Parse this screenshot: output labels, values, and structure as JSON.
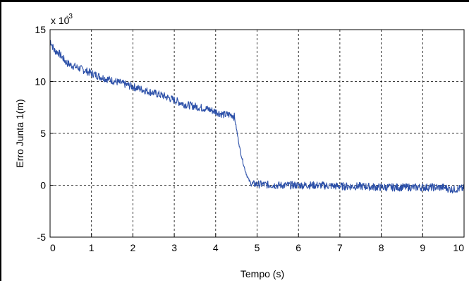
{
  "chart_data": {
    "type": "line",
    "title": "",
    "xlabel": "Tempo (s)",
    "ylabel": "Erro Junta 1(m)",
    "y_scale_label": "x 10",
    "y_scale_exponent": "-3",
    "xlim": [
      0,
      10
    ],
    "ylim": [
      -5,
      15
    ],
    "x_ticks": [
      "0",
      "1",
      "2",
      "3",
      "4",
      "5",
      "6",
      "7",
      "8",
      "9",
      "10"
    ],
    "y_ticks": [
      "-5",
      "0",
      "5",
      "10",
      "15"
    ],
    "grid": true,
    "grid_style": "dashed",
    "line_color": "#2b4fa8",
    "series": [
      {
        "x": [
          0,
          0.05,
          0.1,
          0.2,
          0.3,
          0.4,
          0.5,
          0.75,
          1.0,
          1.25,
          1.5,
          1.75,
          2.0,
          2.25,
          2.5,
          2.75,
          3.0,
          3.25,
          3.5,
          3.75,
          4.0,
          4.2,
          4.4,
          4.45,
          4.5,
          4.55,
          4.6,
          4.65,
          4.7,
          4.75,
          4.8,
          4.85,
          4.9,
          5.0,
          5.5,
          6.0,
          6.5,
          7.0,
          7.5,
          8.0,
          8.5,
          9.0,
          9.5,
          9.7,
          10.0
        ],
        "y": [
          14.0,
          13.5,
          13.0,
          12.8,
          12.3,
          11.8,
          11.6,
          11.2,
          10.8,
          10.4,
          10.1,
          9.8,
          9.5,
          9.2,
          8.9,
          8.6,
          8.2,
          7.8,
          7.6,
          7.4,
          7.1,
          6.8,
          6.8,
          6.6,
          5.5,
          4.3,
          3.2,
          2.4,
          1.6,
          1.0,
          0.5,
          0.2,
          0.1,
          0.1,
          0.0,
          0.0,
          0.0,
          -0.1,
          -0.1,
          -0.2,
          -0.2,
          -0.2,
          -0.2,
          -0.4,
          -0.3
        ]
      }
    ]
  }
}
